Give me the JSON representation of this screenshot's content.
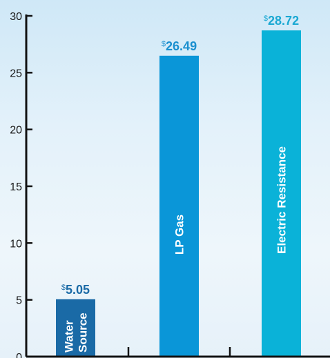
{
  "chart_data": {
    "type": "bar",
    "categories": [
      "Water Source",
      "LP Gas",
      "Electric Resistance"
    ],
    "category_lines": [
      [
        "Water",
        "Source"
      ],
      [
        "LP  Gas"
      ],
      [
        "Electric Resistance"
      ]
    ],
    "values": [
      5.05,
      26.49,
      28.72
    ],
    "value_labels": [
      "5.05",
      "26.49",
      "28.72"
    ],
    "currency_symbol": "$",
    "bar_colors": [
      "#1a6aa6",
      "#0a96d8",
      "#0ab2d8"
    ],
    "value_label_colors": [
      "#1a6aa6",
      "#1a8fcf",
      "#1aa8d3"
    ],
    "ylim": [
      0,
      30
    ],
    "yticks": [
      0,
      5,
      10,
      15,
      20,
      25,
      30
    ],
    "title": "",
    "xlabel": "",
    "ylabel": ""
  }
}
